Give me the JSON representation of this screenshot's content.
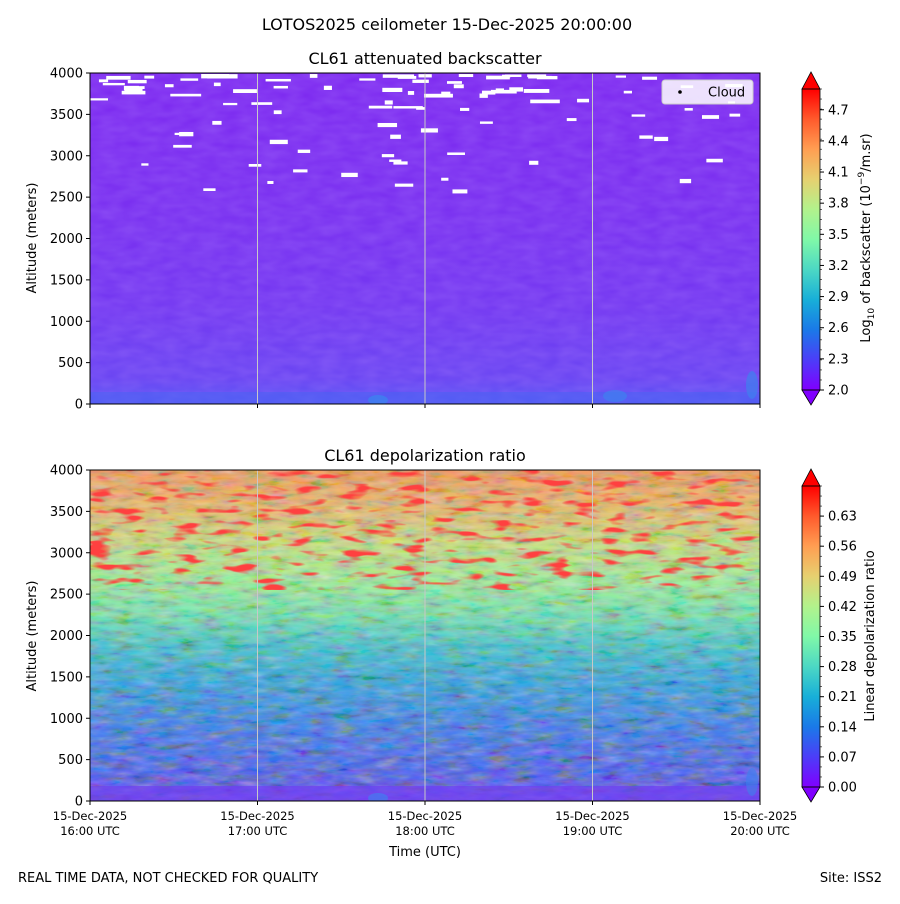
{
  "figure_title": "LOTOS2025 ceilometer 15-Dec-2025 20:00:00",
  "footer_left": "REAL TIME DATA, NOT CHECKED FOR QUALITY",
  "footer_right": "Site: ISS2",
  "x_axis_label": "Time (UTC)",
  "colors": {
    "gridline": "#c8c8c8",
    "cloud_marker": "#ffffff",
    "background_low": "#7b2cf0"
  },
  "chart_data": [
    {
      "type": "heatmap",
      "title": "CL61 attenuated backscatter",
      "ylabel": "Altitude (meters)",
      "x_ticks": [
        {
          "line1": "15-Dec-2025",
          "line2": "16:00 UTC",
          "value": 0
        },
        {
          "line1": "15-Dec-2025",
          "line2": "17:00 UTC",
          "value": 1
        },
        {
          "line1": "15-Dec-2025",
          "line2": "18:00 UTC",
          "value": 2
        },
        {
          "line1": "15-Dec-2025",
          "line2": "19:00 UTC",
          "value": 3
        },
        {
          "line1": "15-Dec-2025",
          "line2": "20:00 UTC",
          "value": 4
        }
      ],
      "y_ticks": [
        "0",
        "500",
        "1000",
        "1500",
        "2000",
        "2500",
        "3000",
        "3500",
        "4000"
      ],
      "ylim": [
        0,
        4000
      ],
      "colorbar": {
        "label_prefix": "Log",
        "label_sub": "10",
        "label_mid": " of backscatter (10",
        "label_sup": "−9",
        "label_suffix": "/m.sr)",
        "ticks": [
          "2.0",
          "2.3",
          "2.6",
          "2.9",
          "3.2",
          "3.5",
          "3.8",
          "4.1",
          "4.4",
          "4.7"
        ],
        "range": [
          2.0,
          4.9
        ],
        "colormap": "rainbow",
        "extend": "both"
      },
      "legend": {
        "label": "Cloud",
        "position": "upper right"
      },
      "grid": "vertical gridlines at x ticks"
    },
    {
      "type": "heatmap",
      "title": "CL61 depolarization ratio",
      "ylabel": "Altitude (meters)",
      "x_ticks": [
        {
          "line1": "15-Dec-2025",
          "line2": "16:00 UTC",
          "value": 0
        },
        {
          "line1": "15-Dec-2025",
          "line2": "17:00 UTC",
          "value": 1
        },
        {
          "line1": "15-Dec-2025",
          "line2": "18:00 UTC",
          "value": 2
        },
        {
          "line1": "15-Dec-2025",
          "line2": "19:00 UTC",
          "value": 3
        },
        {
          "line1": "15-Dec-2025",
          "line2": "20:00 UTC",
          "value": 4
        }
      ],
      "y_ticks": [
        "0",
        "500",
        "1000",
        "1500",
        "2000",
        "2500",
        "3000",
        "3500",
        "4000"
      ],
      "ylim": [
        0,
        4000
      ],
      "colorbar": {
        "label": "Linear depolarization ratio",
        "ticks": [
          "0.00",
          "0.07",
          "0.14",
          "0.21",
          "0.28",
          "0.35",
          "0.42",
          "0.49",
          "0.56",
          "0.63"
        ],
        "range": [
          0.0,
          0.7
        ],
        "colormap": "rainbow",
        "extend": "both"
      },
      "grid": "vertical gridlines at x ticks"
    }
  ]
}
